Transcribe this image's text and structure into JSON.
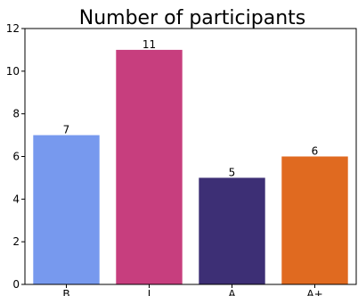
{
  "chart_data": {
    "type": "bar",
    "title": "Number of participants",
    "xlabel": "",
    "ylabel": "",
    "categories": [
      "B",
      "I",
      "A",
      "A+"
    ],
    "values": [
      7,
      11,
      5,
      6
    ],
    "colors": [
      "#7799EE",
      "#C73E7E",
      "#3D2F75",
      "#E06A20"
    ],
    "ylim": [
      0,
      12
    ],
    "yticks": [
      0,
      2,
      4,
      6,
      8,
      10,
      12
    ],
    "grid": false,
    "legend": "none"
  }
}
